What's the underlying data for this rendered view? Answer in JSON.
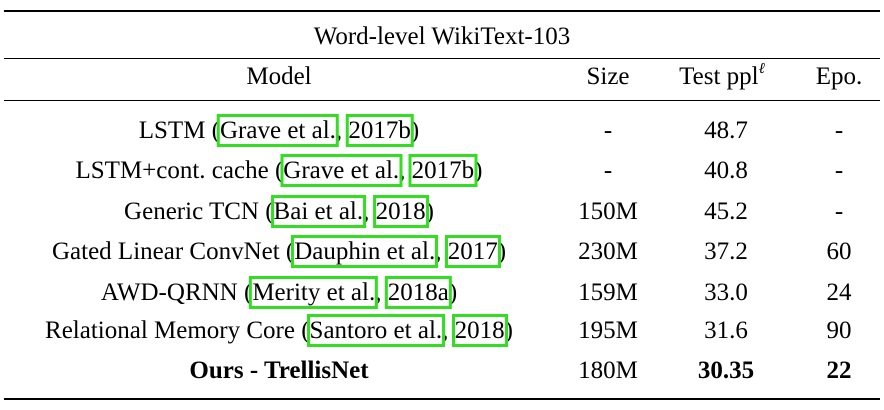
{
  "table": {
    "title": "Word-level WikiText-103",
    "headers": {
      "model": "Model",
      "size": "Size",
      "test_ppl": "Test ppl",
      "test_ppl_sup": "ℓ",
      "epochs": "Epo."
    },
    "rows": [
      {
        "model_prefix": "LSTM (",
        "cite_author": "Grave et al.",
        "cite_sep": ", ",
        "cite_year": "2017b",
        "model_suffix": ")",
        "size": "-",
        "ppl": "48.7",
        "epochs": "-"
      },
      {
        "model_prefix": "LSTM+cont. cache (",
        "cite_author": "Grave et al.",
        "cite_sep": ", ",
        "cite_year": "2017b",
        "model_suffix": ")",
        "size": "-",
        "ppl": "40.8",
        "epochs": "-"
      },
      {
        "model_prefix": "Generic TCN (",
        "cite_author": "Bai et al.",
        "cite_sep": ", ",
        "cite_year": "2018",
        "model_suffix": ")",
        "size": "150M",
        "ppl": "45.2",
        "epochs": "-"
      },
      {
        "model_prefix": "Gated Linear ConvNet (",
        "cite_author": "Dauphin et al.",
        "cite_sep": ", ",
        "cite_year": "2017",
        "model_suffix": ")",
        "size": "230M",
        "ppl": "37.2",
        "epochs": "60"
      },
      {
        "model_prefix": "AWD-QRNN (",
        "cite_author": "Merity et al.",
        "cite_sep": ", ",
        "cite_year": "2018a",
        "model_suffix": ")",
        "size": "159M",
        "ppl": "33.0",
        "epochs": "24"
      },
      {
        "model_prefix": "Relational Memory Core (",
        "cite_author": "Santoro et al.",
        "cite_sep": ", ",
        "cite_year": "2018",
        "model_suffix": ")",
        "size": "195M",
        "ppl": "31.6",
        "epochs": "90"
      }
    ],
    "ours": {
      "model": "Ours - TrellisNet",
      "size": "180M",
      "ppl": "30.35",
      "epochs": "22"
    }
  },
  "colors": {
    "citation_box": "#33dd22"
  }
}
